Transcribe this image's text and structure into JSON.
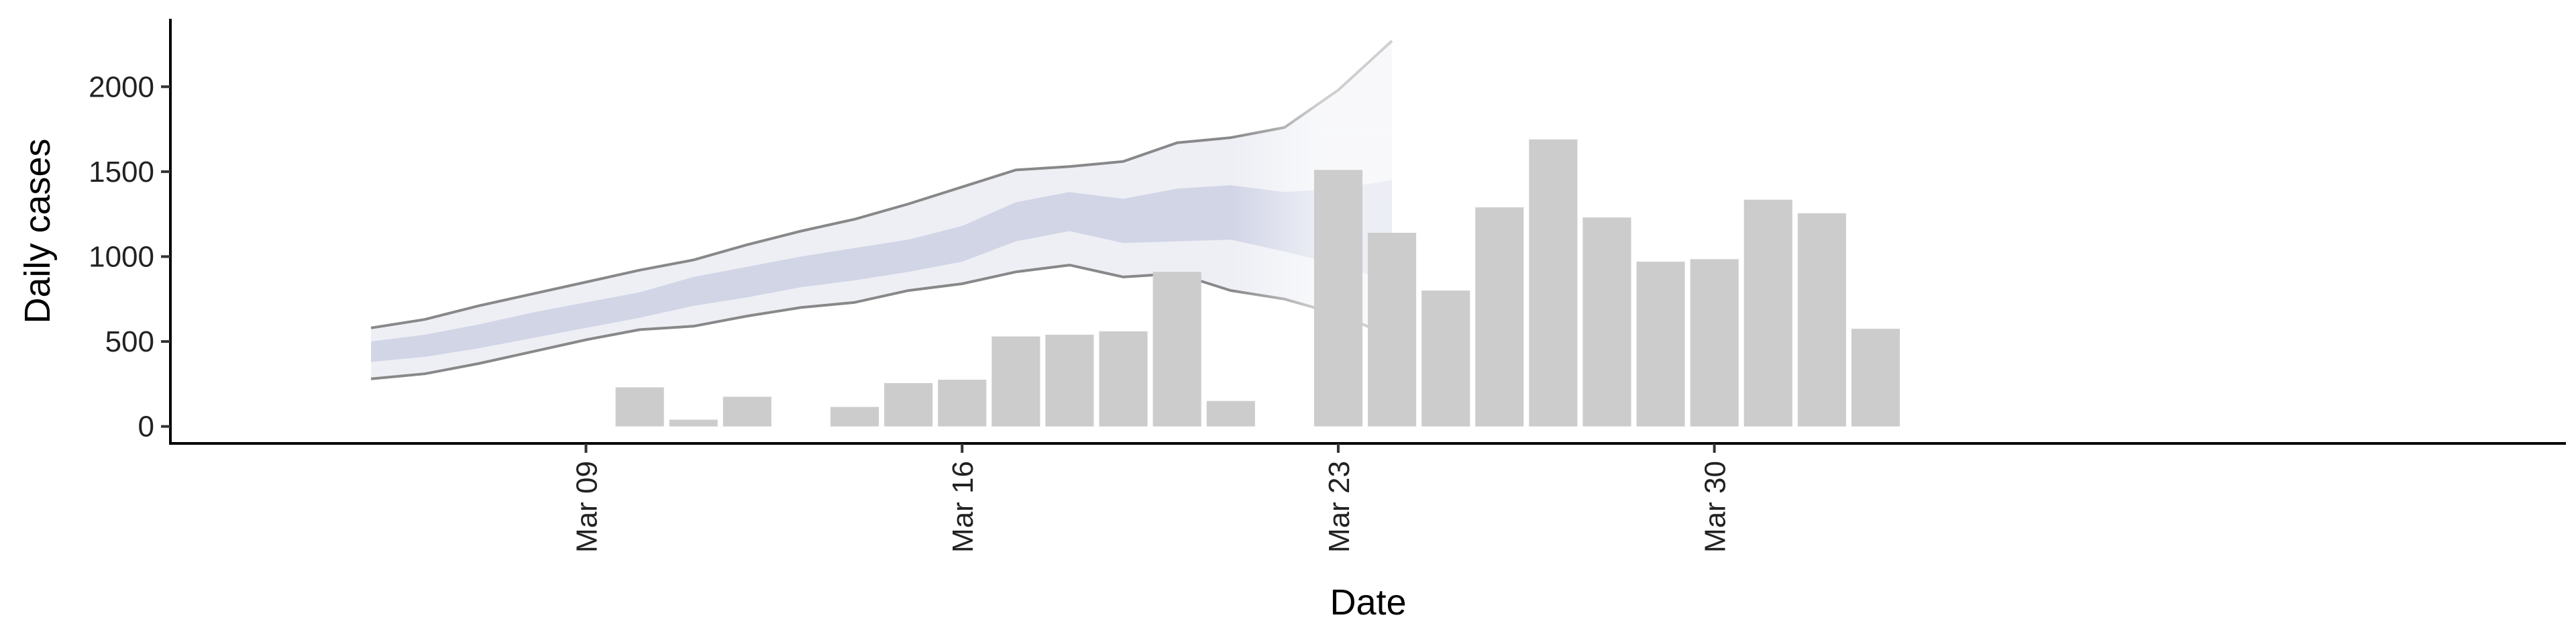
{
  "chart_data": {
    "type": "bar",
    "xlabel": "Date",
    "ylabel": "Daily cases",
    "ylim": [
      -100,
      2400
    ],
    "xlim": [
      "2020-03-04",
      "2020-04-03"
    ],
    "y_ticks": [
      0,
      500,
      1000,
      1500,
      2000
    ],
    "x_ticks": [
      {
        "date": "2020-03-09",
        "label": "Mar 09"
      },
      {
        "date": "2020-03-16",
        "label": "Mar 16"
      },
      {
        "date": "2020-03-23",
        "label": "Mar 23"
      },
      {
        "date": "2020-03-30",
        "label": "Mar 30"
      }
    ],
    "grid": false,
    "legend": "none",
    "bars": {
      "name": "",
      "color": "#cccccc",
      "dates": [
        "2020-03-10",
        "2020-03-11",
        "2020-03-12",
        "2020-03-14",
        "2020-03-15",
        "2020-03-16",
        "2020-03-17",
        "2020-03-18",
        "2020-03-19",
        "2020-03-20",
        "2020-03-21",
        "2020-03-23",
        "2020-03-24",
        "2020-03-25",
        "2020-03-26",
        "2020-03-27",
        "2020-03-28",
        "2020-03-29",
        "2020-03-30",
        "2020-03-31",
        "2020-04-01",
        "2020-04-02"
      ],
      "values": [
        230,
        40,
        175,
        115,
        255,
        275,
        530,
        540,
        560,
        910,
        150,
        1510,
        1140,
        800,
        1290,
        1690,
        1230,
        970,
        985,
        1335,
        1255,
        575
      ]
    },
    "forecast_band": {
      "outer_color": "#dfe1ec",
      "inner_color": "#b9c0d9",
      "line_color": "#888888",
      "dates": [
        "2020-03-05",
        "2020-03-06",
        "2020-03-07",
        "2020-03-08",
        "2020-03-09",
        "2020-03-10",
        "2020-03-11",
        "2020-03-12",
        "2020-03-13",
        "2020-03-14",
        "2020-03-15",
        "2020-03-16",
        "2020-03-17",
        "2020-03-18",
        "2020-03-19",
        "2020-03-20",
        "2020-03-21",
        "2020-03-22",
        "2020-03-23",
        "2020-03-24"
      ],
      "upper_90": [
        580,
        630,
        710,
        780,
        850,
        920,
        980,
        1070,
        1150,
        1220,
        1310,
        1410,
        1510,
        1530,
        1560,
        1670,
        1700,
        1760,
        1980,
        2270
      ],
      "lower_90": [
        280,
        310,
        370,
        440,
        510,
        570,
        590,
        650,
        700,
        730,
        800,
        840,
        910,
        950,
        880,
        900,
        800,
        750,
        660,
        530
      ],
      "upper_50": [
        500,
        540,
        600,
        670,
        730,
        790,
        880,
        940,
        1000,
        1050,
        1100,
        1180,
        1320,
        1380,
        1340,
        1400,
        1420,
        1380,
        1400,
        1450
      ],
      "lower_50": [
        380,
        410,
        460,
        520,
        580,
        640,
        710,
        760,
        820,
        860,
        910,
        970,
        1090,
        1150,
        1080,
        1090,
        1100,
        1030,
        950,
        850
      ],
      "fade_from": "2020-03-21"
    }
  }
}
